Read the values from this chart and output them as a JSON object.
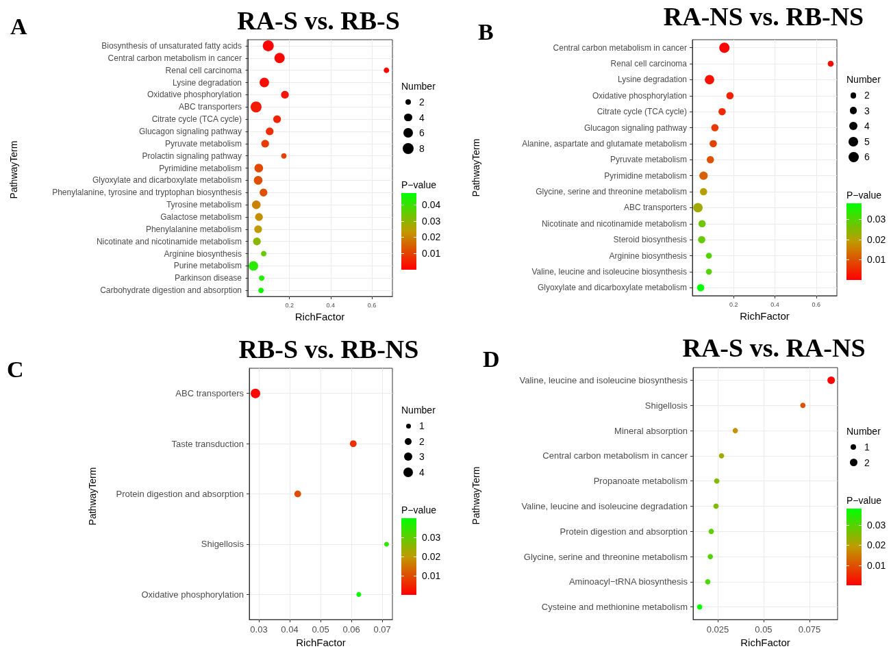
{
  "chart_data": [
    {
      "type": "bubble",
      "title": "RA-S vs. RB-S",
      "xlabel": "RichFactor",
      "ylabel": "PathwayTerm",
      "legend_title": "Number",
      "clabel": "P−value",
      "annotations": [
        "A"
      ],
      "orientation": "horizontal",
      "marker": "circle",
      "grid": true,
      "categories": [
        "Biosynthesis of unsaturated fatty acids",
        "Central carbon metabolism in cancer",
        "Renal cell carcinoma",
        "Lysine degradation",
        "Oxidative phosphorylation",
        "ABC transporters",
        "Citrate cycle (TCA cycle)",
        "Glucagon signaling pathway",
        "Pyruvate metabolism",
        "Prolactin signaling pathway",
        "Pyrimidine metabolism",
        "Glyoxylate and dicarboxylate metabolism",
        "Phenylalanine, tyrosine and tryptophan biosynthesis",
        "Tyrosine metabolism",
        "Galactose metabolism",
        "Phenylalanine metabolism",
        "Nicotinate and nicotinamide metabolism",
        "Arginine biosynthesis",
        "Purine metabolism",
        "Parkinson disease",
        "Carbohydrate digestion and absorption"
      ],
      "values": [
        0.097,
        0.152,
        0.671,
        0.078,
        0.178,
        0.038,
        0.14,
        0.104,
        0.082,
        0.173,
        0.051,
        0.048,
        0.074,
        0.039,
        0.052,
        0.048,
        0.042,
        0.075,
        0.025,
        0.065,
        0.062
      ],
      "sizes": [
        8,
        7,
        2,
        6,
        4,
        8,
        4,
        4,
        4,
        2,
        5,
        5,
        4,
        5,
        4,
        4,
        4,
        2,
        6,
        2,
        2
      ],
      "cvalues": [
        0.0005,
        0.001,
        0.001,
        0.002,
        0.003,
        0.004,
        0.005,
        0.007,
        0.009,
        0.01,
        0.011,
        0.012,
        0.012,
        0.02,
        0.022,
        0.024,
        0.03,
        0.035,
        0.042,
        0.043,
        0.045
      ],
      "size_legend": [
        2,
        4,
        6,
        8
      ],
      "clim": [
        0,
        0.047
      ],
      "cticks": [
        0.01,
        0.02,
        0.03,
        0.04
      ],
      "xlim": [
        -0.005,
        0.7
      ],
      "xticks": [
        0.2,
        0.4,
        0.6
      ]
    },
    {
      "type": "bubble",
      "title": "RA-NS vs. RB-NS",
      "xlabel": "RichFactor",
      "ylabel": "PathwayTerm",
      "legend_title": "Number",
      "clabel": "P−value",
      "annotations": [
        "B"
      ],
      "orientation": "horizontal",
      "marker": "circle",
      "grid": true,
      "categories": [
        "Central carbon metabolism in cancer",
        "Renal cell carcinoma",
        "Lysine degradation",
        "Oxidative phosphorylation",
        "Citrate cycle (TCA cycle)",
        "Glucagon signaling pathway",
        "Alanine, aspartate and glutamate metabolism",
        "Pyruvate metabolism",
        "Pyrimidine metabolism",
        "Glycine, serine and threonine metabolism",
        "ABC transporters",
        "Nicotinate and nicotinamide metabolism",
        "Steroid biosynthesis",
        "Arginine biosynthesis",
        "Valine, leucine and isoleucine biosynthesis",
        "Glyoxylate and dicarboxylate metabolism"
      ],
      "values": [
        0.155,
        0.67,
        0.083,
        0.182,
        0.144,
        0.109,
        0.101,
        0.087,
        0.054,
        0.054,
        0.027,
        0.047,
        0.045,
        0.08,
        0.08,
        0.04
      ],
      "sizes": [
        6,
        2,
        5,
        3,
        3,
        3,
        3,
        3,
        4,
        3,
        5,
        3,
        3,
        2,
        2,
        3
      ],
      "cvalues": [
        0.0005,
        0.001,
        0.002,
        0.004,
        0.005,
        0.007,
        0.008,
        0.01,
        0.012,
        0.02,
        0.022,
        0.027,
        0.028,
        0.03,
        0.03,
        0.038
      ],
      "size_legend": [
        2,
        3,
        4,
        5,
        6
      ],
      "clim": [
        0,
        0.038
      ],
      "cticks": [
        0.01,
        0.02,
        0.03
      ],
      "xlim": [
        0,
        0.7
      ],
      "xticks": [
        0.2,
        0.4,
        0.6
      ]
    },
    {
      "type": "bubble",
      "title": "RB-S vs. RB-NS",
      "xlabel": "RichFactor",
      "ylabel": "PathwayTerm",
      "legend_title": "Number",
      "clabel": "P−value",
      "annotations": [
        "C"
      ],
      "orientation": "horizontal",
      "marker": "circle",
      "grid": true,
      "categories": [
        "ABC transporters",
        "Taste transduction",
        "Protein digestion and absorption",
        "Shigellosis",
        "Oxidative phosphorylation"
      ],
      "values": [
        0.0289,
        0.0606,
        0.0426,
        0.0714,
        0.0624
      ],
      "sizes": [
        4,
        2,
        2,
        1,
        1
      ],
      "cvalues": [
        0.001,
        0.006,
        0.01,
        0.035,
        0.039
      ],
      "size_legend": [
        1,
        2,
        3,
        4
      ],
      "clim": [
        0,
        0.04
      ],
      "cticks": [
        0.01,
        0.02,
        0.03
      ],
      "xlim": [
        0.0269,
        0.0733
      ],
      "xticks": [
        0.03,
        0.04,
        0.05,
        0.06,
        0.07
      ]
    },
    {
      "type": "bubble",
      "title": "RA-S vs. RA-NS",
      "xlabel": "RichFactor",
      "ylabel": "PathwayTerm",
      "legend_title": "Number",
      "clabel": "P−value",
      "annotations": [
        "D"
      ],
      "orientation": "horizontal",
      "marker": "circle",
      "grid": true,
      "categories": [
        "Valine, leucine and isoleucine biosynthesis",
        "Shigellosis",
        "Mineral absorption",
        "Central carbon metabolism in cancer",
        "Propanoate metabolism",
        "Valine, leucine and isoleucine degradation",
        "Protein digestion and absorption",
        "Glycine, serine and threonine metabolism",
        "Aminoacyl−tRNA biosynthesis",
        "Cysteine and methionine metabolism"
      ],
      "values": [
        0.0868,
        0.0714,
        0.0346,
        0.0271,
        0.0245,
        0.0241,
        0.0215,
        0.021,
        0.0196,
        0.0152
      ],
      "sizes": [
        2,
        1,
        1,
        1,
        1,
        1,
        1,
        1,
        1,
        1
      ],
      "cvalues": [
        0.0005,
        0.01,
        0.018,
        0.022,
        0.025,
        0.025,
        0.029,
        0.03,
        0.031,
        0.038
      ],
      "size_legend": [
        1,
        2
      ],
      "clim": [
        0,
        0.038
      ],
      "cticks": [
        0.01,
        0.02,
        0.03
      ],
      "xlim": [
        0.0116,
        0.0903
      ],
      "xticks": [
        0.025,
        0.05,
        0.075
      ]
    }
  ]
}
